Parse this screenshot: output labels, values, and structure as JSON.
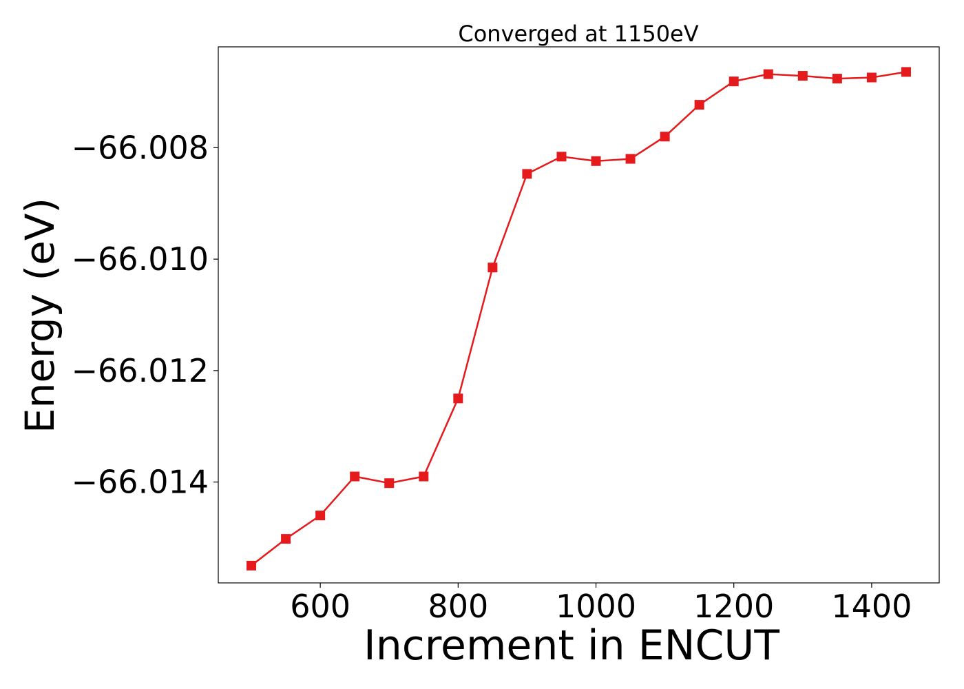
{
  "chart_data": {
    "type": "line",
    "title": "Converged at 1150eV",
    "xlabel": "Increment in ENCUT",
    "ylabel": "Energy (eV)",
    "xlim": [
      452,
      1498
    ],
    "ylim": [
      -66.01581,
      -66.00619
    ],
    "xticks": [
      {
        "value": 600,
        "label": "600"
      },
      {
        "value": 800,
        "label": "800"
      },
      {
        "value": 1000,
        "label": "1000"
      },
      {
        "value": 1200,
        "label": "1200"
      },
      {
        "value": 1400,
        "label": "1400"
      }
    ],
    "yticks": [
      {
        "value": -66.008,
        "label": "−66.008"
      },
      {
        "value": -66.01,
        "label": "−66.010"
      },
      {
        "value": -66.012,
        "label": "−66.012"
      },
      {
        "value": -66.014,
        "label": "−66.014"
      }
    ],
    "grid": false,
    "series": [
      {
        "color": "#e41a1c",
        "marker": "square",
        "x": [
          500,
          550,
          600,
          650,
          700,
          750,
          800,
          850,
          900,
          950,
          1000,
          1050,
          1100,
          1150,
          1200,
          1250,
          1300,
          1350,
          1400,
          1450
        ],
        "y": [
          -66.0155,
          -66.01502,
          -66.0146,
          -66.0139,
          -66.01402,
          -66.0139,
          -66.0125,
          -66.01015,
          -66.00847,
          -66.00816,
          -66.00824,
          -66.0082,
          -66.0078,
          -66.00723,
          -66.00681,
          -66.00668,
          -66.00671,
          -66.00676,
          -66.00674,
          -66.00664
        ]
      }
    ]
  }
}
